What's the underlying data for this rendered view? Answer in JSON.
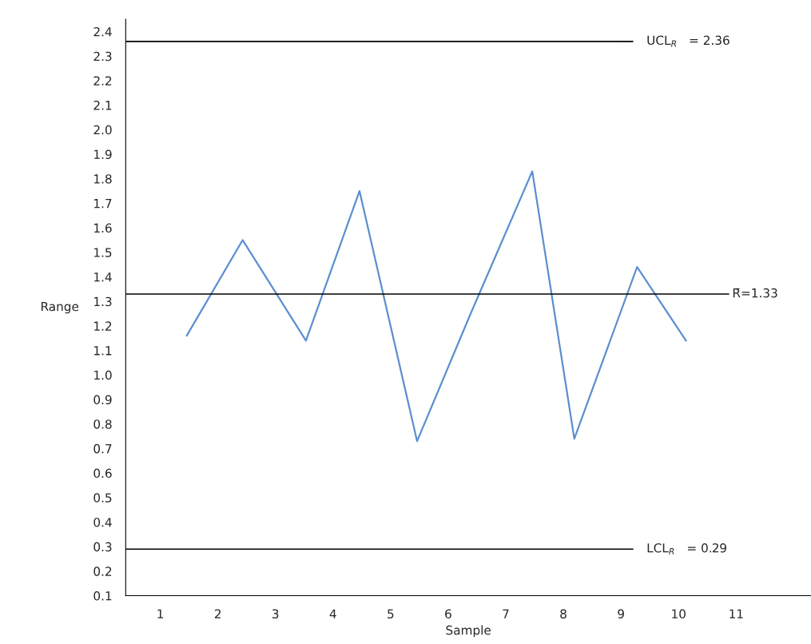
{
  "chart_data": {
    "type": "line",
    "xlabel": "Sample",
    "ylabel": "Range",
    "x": [
      1.46,
      2.43,
      3.53,
      4.46,
      5.46,
      6.39,
      7.46,
      8.19,
      9.28,
      10.13
    ],
    "series": [
      {
        "color": "#5b8fd0",
        "values": [
          1.16,
          1.55,
          1.14,
          1.75,
          0.73,
          1.25,
          1.83,
          0.74,
          1.44,
          1.14
        ]
      }
    ],
    "xlim": [
      0.4,
      12.3
    ],
    "xticks": [
      1,
      2,
      3,
      4,
      5,
      6,
      7,
      8,
      9,
      10,
      11
    ],
    "ylim": [
      0.1,
      2.45
    ],
    "yticks": [
      0.1,
      0.2,
      0.3,
      0.4,
      0.5,
      0.6,
      0.7,
      0.8,
      0.9,
      {
        "value": 1,
        "label": "1.0"
      },
      1.1,
      1.2,
      1.3,
      1.4,
      1.5,
      1.6,
      1.7,
      1.8,
      1.9,
      {
        "value": 2,
        "label": "2.0"
      },
      2.1,
      2.2,
      2.3,
      2.4
    ],
    "ref_lines": [
      {
        "axis": "y",
        "value": 2.36,
        "label": "UCL$_{R}$   = 2.36",
        "color": "#000000"
      },
      {
        "axis": "y",
        "value": 1.33,
        "label": "R̄=1.33",
        "color": "#000000"
      },
      {
        "axis": "y",
        "value": 0.29,
        "label": "LCL$_{R}$   = 0.29",
        "color": "#000000"
      }
    ],
    "grid": false,
    "marker": "none",
    "line_style": "solid"
  }
}
